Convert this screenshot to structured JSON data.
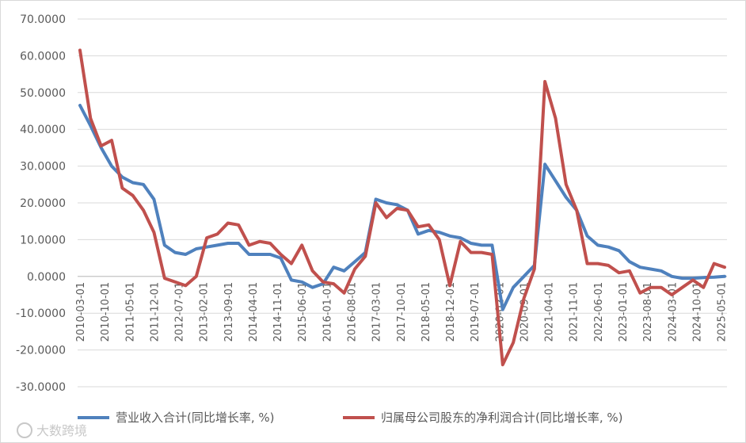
{
  "chart_data": {
    "type": "line",
    "title": "",
    "xlabel": "",
    "ylabel": "",
    "ylim": [
      -30,
      70
    ],
    "yticks": [
      "70.0000",
      "60.0000",
      "50.0000",
      "40.0000",
      "30.0000",
      "20.0000",
      "10.0000",
      "0.0000",
      "-10.0000",
      "-20.0000",
      "-30.0000"
    ],
    "x": [
      "2010-03-01",
      "2010-06-01",
      "2010-09-01",
      "2010-12-01",
      "2011-03-01",
      "2011-06-01",
      "2011-09-01",
      "2011-12-01",
      "2012-03-01",
      "2012-06-01",
      "2012-09-01",
      "2012-12-01",
      "2013-03-01",
      "2013-06-01",
      "2013-09-01",
      "2013-12-01",
      "2014-03-01",
      "2014-06-01",
      "2014-09-01",
      "2014-12-01",
      "2015-03-01",
      "2015-06-01",
      "2015-09-01",
      "2015-12-01",
      "2016-03-01",
      "2016-06-01",
      "2016-09-01",
      "2016-12-01",
      "2017-03-01",
      "2017-06-01",
      "2017-09-01",
      "2017-12-01",
      "2018-03-01",
      "2018-06-01",
      "2018-09-01",
      "2018-12-01",
      "2019-03-01",
      "2019-06-01",
      "2019-09-01",
      "2019-12-01",
      "2020-03-01",
      "2020-06-01",
      "2020-09-01",
      "2020-12-01",
      "2021-03-01",
      "2021-06-01",
      "2021-09-01",
      "2021-12-01",
      "2022-03-01",
      "2022-06-01",
      "2022-09-01",
      "2022-12-01",
      "2023-03-01",
      "2023-06-01",
      "2023-09-01",
      "2023-12-01",
      "2024-03-01",
      "2024-06-01",
      "2024-09-01",
      "2024-12-01",
      "2025-03-01",
      "2025-06-01"
    ],
    "xtick_labels": [
      "2010-03-01",
      "2010-10-01",
      "2011-05-01",
      "2011-12-01",
      "2012-07-01",
      "2013-02-01",
      "2013-09-01",
      "2014-04-01",
      "2014-11-01",
      "2015-06-01",
      "2016-01-01",
      "2016-08-01",
      "2017-03-01",
      "2017-10-01",
      "2018-05-01",
      "2018-12-01",
      "2019-07-01",
      "2020-02-01",
      "2020-09-01",
      "2021-04-01",
      "2021-11-01",
      "2022-06-01",
      "2023-01-01",
      "2023-08-01",
      "2024-03-01",
      "2024-10-01",
      "2025-05-01"
    ],
    "series": [
      {
        "name": "营业收入合计(同比增长率, %)",
        "color": "#4f81bd",
        "values": [
          46.5,
          41,
          35,
          30,
          27,
          25.5,
          25,
          21,
          8.5,
          6.5,
          6,
          7.5,
          8,
          8.5,
          9,
          9,
          6,
          6,
          6,
          5,
          -1,
          -1.5,
          -3,
          -2,
          2.5,
          1.5,
          4,
          6.5,
          21,
          20,
          19.5,
          18,
          11.5,
          12.5,
          12,
          11,
          10.5,
          9,
          8.5,
          8.5,
          -9,
          -3,
          0,
          3,
          30.5,
          26,
          21.5,
          18,
          11,
          8.5,
          8,
          7,
          4,
          2.5,
          2,
          1.5,
          0,
          -0.5,
          -0.5,
          -0.3,
          -0.2,
          0
        ]
      },
      {
        "name": "归属母公司股东的净利润合计(同比增长率, %)",
        "color": "#c0504d",
        "values": [
          61.5,
          43,
          35.5,
          37,
          24,
          22,
          18,
          12,
          -0.5,
          -1.5,
          -2.5,
          0,
          10.5,
          11.5,
          14.5,
          14,
          8.5,
          9.5,
          9,
          6,
          3.5,
          8.5,
          1.5,
          -1.5,
          -2,
          -4.5,
          2,
          5.5,
          20,
          16,
          18.5,
          18,
          13.5,
          14,
          10,
          -2.5,
          9.5,
          6.5,
          6.5,
          6,
          -24,
          -18,
          -6,
          2,
          53,
          43,
          25,
          18,
          3.5,
          3.5,
          3,
          1,
          1.5,
          -4.5,
          -3,
          -3,
          -5,
          -3,
          -1,
          -3,
          3.5,
          2.5
        ]
      }
    ]
  },
  "legend": {
    "items": [
      {
        "label": "营业收入合计(同比增长率, %)",
        "color": "#4f81bd"
      },
      {
        "label": "归属母公司股东的净利润合计(同比增长率, %)",
        "color": "#c0504d"
      }
    ]
  },
  "watermark": "大数跨境"
}
